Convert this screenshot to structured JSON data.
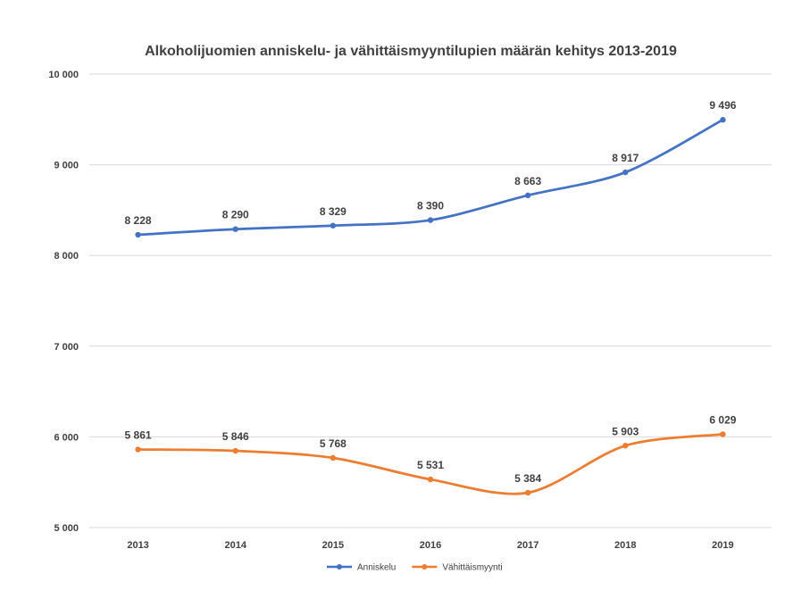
{
  "chart_data": {
    "type": "line",
    "title": "Alkoholijuomien anniskelu- ja vähittäismyyntilupien määrän kehitys 2013-2019",
    "xlabel": "",
    "ylabel": "",
    "categories": [
      "2013",
      "2014",
      "2015",
      "2016",
      "2017",
      "2018",
      "2019"
    ],
    "ylim": [
      5000,
      10000
    ],
    "yticks": [
      5000,
      6000,
      7000,
      8000,
      9000,
      10000
    ],
    "ytick_labels": [
      "5 000",
      "6 000",
      "7 000",
      "8 000",
      "9 000",
      "10 000"
    ],
    "grid": true,
    "legend_position": "bottom",
    "series": [
      {
        "name": "Anniskelu",
        "color": "#4472c4",
        "values": [
          8228,
          8290,
          8329,
          8390,
          8663,
          8917,
          9496
        ],
        "labels": [
          "8 228",
          "8 290",
          "8 329",
          "8 390",
          "8 663",
          "8 917",
          "9 496"
        ]
      },
      {
        "name": "Vähittäismyynti",
        "color": "#ed7d31",
        "values": [
          5861,
          5846,
          5768,
          5531,
          5384,
          5903,
          6029
        ],
        "labels": [
          "5 861",
          "5 846",
          "5 768",
          "5 531",
          "5 384",
          "5 903",
          "6 029"
        ]
      }
    ]
  }
}
